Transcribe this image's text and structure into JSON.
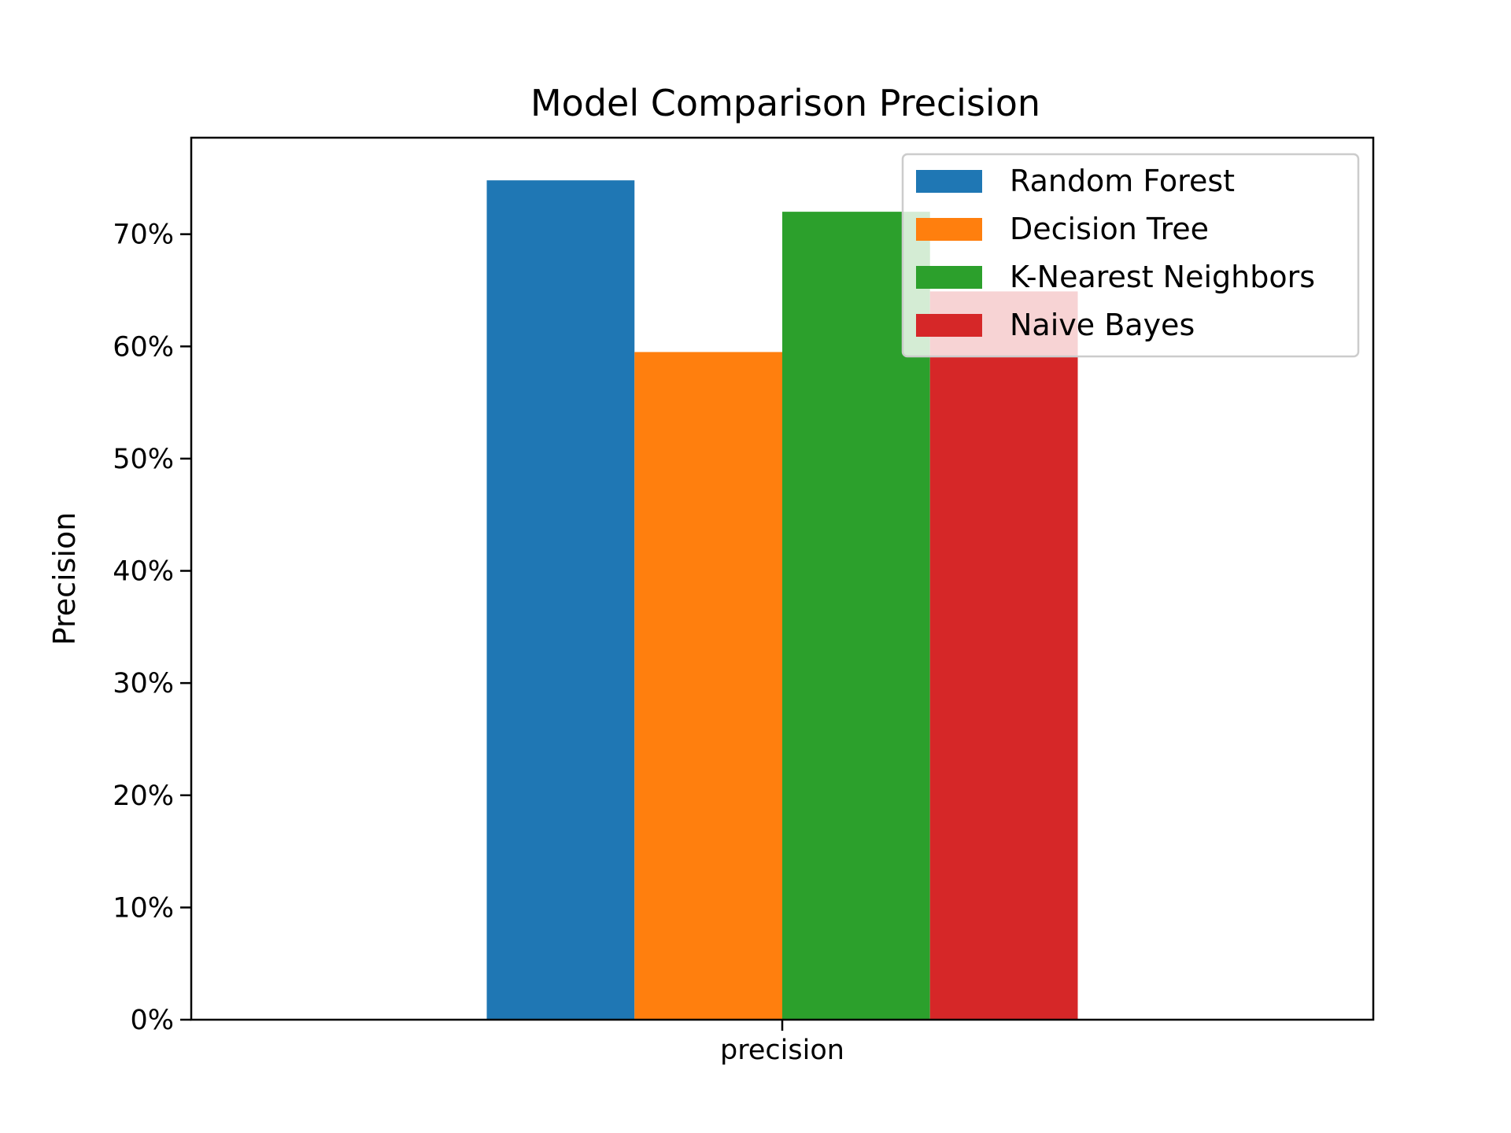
{
  "chart_data": {
    "type": "bar",
    "title": "Model Comparison Precision",
    "xlabel": "",
    "ylabel": "Precision",
    "categories": [
      "precision"
    ],
    "y_tick_format": "percent",
    "ylim": [
      0,
      0.786
    ],
    "yticks": [
      0,
      0.1,
      0.2,
      0.3,
      0.4,
      0.5,
      0.6,
      0.7
    ],
    "y_tick_labels": [
      "0%",
      "10%",
      "20%",
      "30%",
      "40%",
      "50%",
      "60%",
      "70%"
    ],
    "grid": false,
    "legend_position": "top-right",
    "series": [
      {
        "name": "Random Forest",
        "values": [
          0.748
        ],
        "color": "#1f77b4"
      },
      {
        "name": "Decision Tree",
        "values": [
          0.595
        ],
        "color": "#ff7f0e"
      },
      {
        "name": "K-Nearest Neighbors",
        "values": [
          0.72
        ],
        "color": "#2ca02c"
      },
      {
        "name": "Naive Bayes",
        "values": [
          0.649
        ],
        "color": "#d62728"
      }
    ]
  }
}
